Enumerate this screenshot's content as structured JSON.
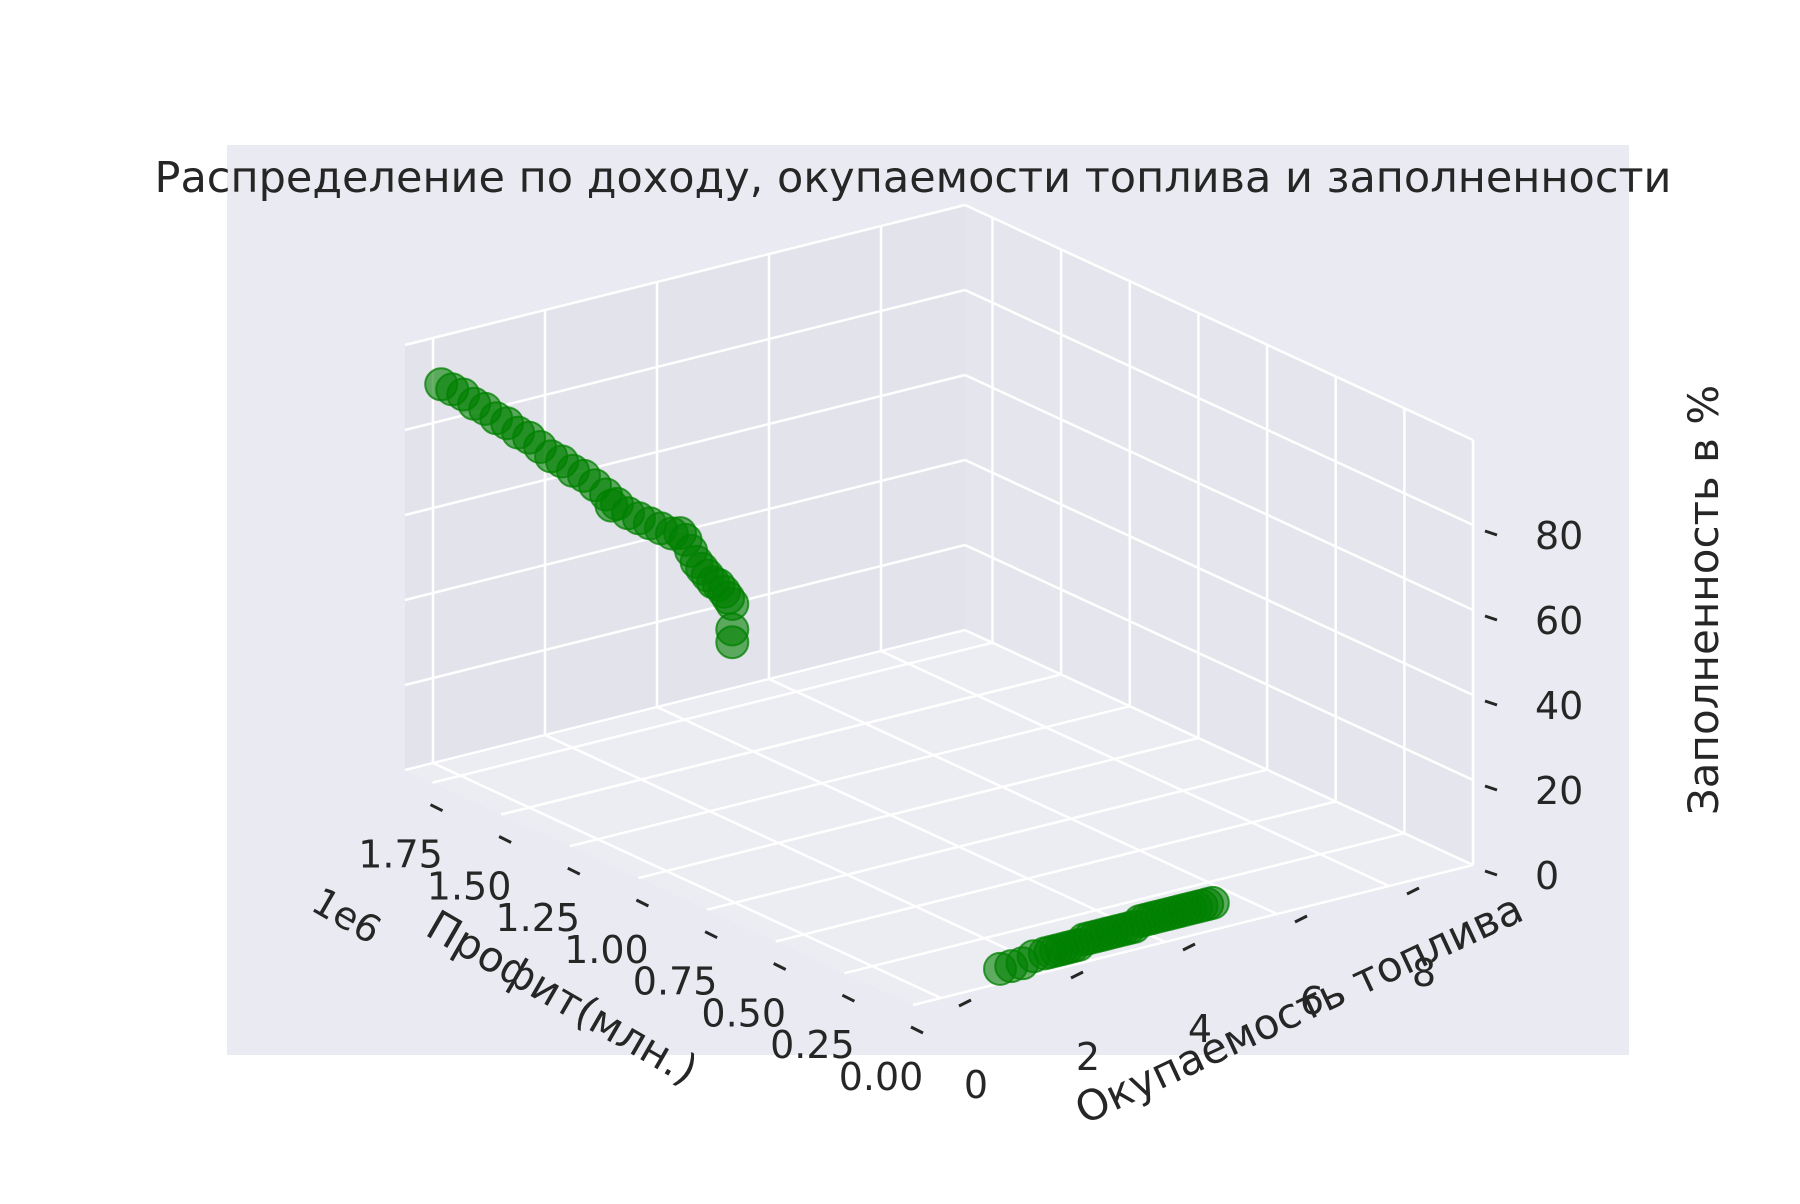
{
  "chart_data": {
    "type": "scatter3d",
    "title": "Распределение по доходу, окупаемости топлива и заполненности",
    "xlabel": "Профит(млн.)",
    "ylabel": "Окупаемость топлива",
    "zlabel": "Заполненность в %",
    "x_offset_text": "1e6",
    "xlim": [
      0,
      1850000
    ],
    "ylim": [
      -0.5,
      9.5
    ],
    "zlim": [
      0,
      100
    ],
    "x_ticks": [
      "0.00",
      "0.25",
      "0.50",
      "0.75",
      "1.00",
      "1.25",
      "1.50",
      "1.75"
    ],
    "y_ticks": [
      "0",
      "2",
      "4",
      "6",
      "8"
    ],
    "z_ticks": [
      "0",
      "20",
      "40",
      "60",
      "80"
    ],
    "grid": true,
    "marker_color": "#008000",
    "points_high_fill": [
      {
        "x": 1820000,
        "y": 0.0,
        "z": 90
      },
      {
        "x": 1780000,
        "y": 0.0,
        "z": 90
      },
      {
        "x": 1740000,
        "y": 0.0,
        "z": 90
      },
      {
        "x": 1700000,
        "y": 0.0,
        "z": 89
      },
      {
        "x": 1660000,
        "y": 0.0,
        "z": 89
      },
      {
        "x": 1620000,
        "y": 0.0,
        "z": 88
      },
      {
        "x": 1580000,
        "y": 0.0,
        "z": 88
      },
      {
        "x": 1540000,
        "y": 0.0,
        "z": 87
      },
      {
        "x": 1500000,
        "y": 0.0,
        "z": 87
      },
      {
        "x": 1460000,
        "y": 0.0,
        "z": 86
      },
      {
        "x": 1420000,
        "y": 0.0,
        "z": 85
      },
      {
        "x": 1380000,
        "y": 0.0,
        "z": 85
      },
      {
        "x": 1340000,
        "y": 0.0,
        "z": 84
      },
      {
        "x": 1300000,
        "y": 0.0,
        "z": 84
      },
      {
        "x": 1260000,
        "y": 0.0,
        "z": 83
      },
      {
        "x": 1220000,
        "y": 0.0,
        "z": 82
      },
      {
        "x": 1200000,
        "y": 0.0,
        "z": 80
      },
      {
        "x": 1180000,
        "y": 0.0,
        "z": 81
      },
      {
        "x": 1140000,
        "y": 0.0,
        "z": 80
      },
      {
        "x": 1100000,
        "y": 0.0,
        "z": 80
      },
      {
        "x": 1060000,
        "y": 0.0,
        "z": 80
      },
      {
        "x": 1020000,
        "y": 0.0,
        "z": 80
      },
      {
        "x": 980000,
        "y": 0.0,
        "z": 80
      },
      {
        "x": 950000,
        "y": 0.0,
        "z": 81
      },
      {
        "x": 930000,
        "y": 0.0,
        "z": 80
      },
      {
        "x": 910000,
        "y": 0.0,
        "z": 78
      },
      {
        "x": 890000,
        "y": 0.0,
        "z": 76
      },
      {
        "x": 870000,
        "y": 0.0,
        "z": 75
      },
      {
        "x": 850000,
        "y": 0.0,
        "z": 74
      },
      {
        "x": 830000,
        "y": 0.0,
        "z": 73
      },
      {
        "x": 810000,
        "y": 0.0,
        "z": 73
      },
      {
        "x": 790000,
        "y": 0.0,
        "z": 72
      },
      {
        "x": 775000,
        "y": 0.0,
        "z": 71
      },
      {
        "x": 760000,
        "y": 0.0,
        "z": 70
      },
      {
        "x": 760000,
        "y": 0.0,
        "z": 64
      },
      {
        "x": 760000,
        "y": 0.0,
        "z": 61
      }
    ],
    "points_low_fill": [
      {
        "x": 30000,
        "y": 5.0,
        "z": 5
      },
      {
        "x": 30000,
        "y": 4.9,
        "z": 5
      },
      {
        "x": 30000,
        "y": 4.8,
        "z": 5
      },
      {
        "x": 30000,
        "y": 4.7,
        "z": 5
      },
      {
        "x": 30000,
        "y": 4.6,
        "z": 5
      },
      {
        "x": 30000,
        "y": 4.5,
        "z": 5
      },
      {
        "x": 30000,
        "y": 4.4,
        "z": 5
      },
      {
        "x": 30000,
        "y": 4.3,
        "z": 5
      },
      {
        "x": 30000,
        "y": 4.2,
        "z": 5
      },
      {
        "x": 30000,
        "y": 4.1,
        "z": 5
      },
      {
        "x": 30000,
        "y": 4.0,
        "z": 5
      },
      {
        "x": 30000,
        "y": 3.9,
        "z": 5
      },
      {
        "x": 30000,
        "y": 3.8,
        "z": 5
      },
      {
        "x": 30000,
        "y": 3.7,
        "z": 5
      },
      {
        "x": 30000,
        "y": 3.6,
        "z": 4
      },
      {
        "x": 30000,
        "y": 3.5,
        "z": 4
      },
      {
        "x": 30000,
        "y": 3.4,
        "z": 4
      },
      {
        "x": 30000,
        "y": 3.3,
        "z": 4
      },
      {
        "x": 30000,
        "y": 3.2,
        "z": 4
      },
      {
        "x": 30000,
        "y": 3.1,
        "z": 4
      },
      {
        "x": 30000,
        "y": 3.0,
        "z": 4
      },
      {
        "x": 30000,
        "y": 2.9,
        "z": 4
      },
      {
        "x": 30000,
        "y": 2.8,
        "z": 4
      },
      {
        "x": 30000,
        "y": 2.7,
        "z": 4
      },
      {
        "x": 30000,
        "y": 2.6,
        "z": 3
      },
      {
        "x": 30000,
        "y": 2.5,
        "z": 3
      },
      {
        "x": 30000,
        "y": 2.4,
        "z": 3
      },
      {
        "x": 30000,
        "y": 2.3,
        "z": 3
      },
      {
        "x": 30000,
        "y": 2.2,
        "z": 3
      },
      {
        "x": 30000,
        "y": 2.1,
        "z": 3
      },
      {
        "x": 30000,
        "y": 2.0,
        "z": 3
      },
      {
        "x": 30000,
        "y": 1.8,
        "z": 3
      },
      {
        "x": 30000,
        "y": 1.6,
        "z": 2
      },
      {
        "x": 30000,
        "y": 1.4,
        "z": 2
      },
      {
        "x": 30000,
        "y": 1.2,
        "z": 2
      }
    ]
  }
}
